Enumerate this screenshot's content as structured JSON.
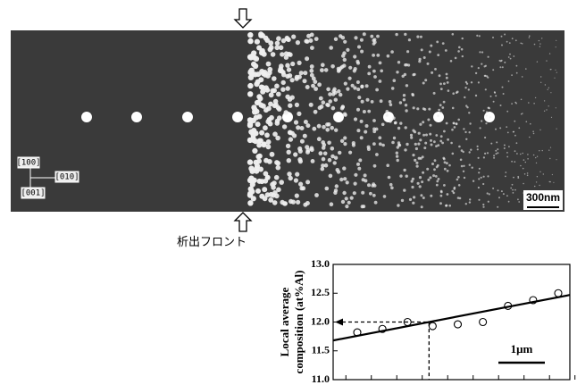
{
  "figure": {
    "orientation": [
      "[100]",
      "[010]",
      "[001]"
    ],
    "scale_bar": "300nm",
    "front_label": "析出フロント"
  },
  "chart_data": {
    "type": "scatter",
    "ylabel": [
      "Local average",
      "composition (at%Al)"
    ],
    "categories": [
      null,
      null,
      null,
      null,
      null,
      null,
      null,
      null,
      null
    ],
    "values": [
      11.82,
      11.88,
      12.0,
      11.93,
      11.96,
      12.0,
      12.28,
      12.38,
      12.5
    ],
    "ylim": [
      11.0,
      13.0
    ],
    "yticks": [
      {
        "value": 11.0,
        "label": "11.0"
      },
      11.5,
      {
        "value": 12.0,
        "label": "12.0"
      },
      12.5,
      {
        "value": 13.0,
        "label": "13.0"
      }
    ],
    "trend_line": [
      11.68,
      12.47
    ],
    "reference_value": 12.0,
    "scale_label": "1μm"
  }
}
